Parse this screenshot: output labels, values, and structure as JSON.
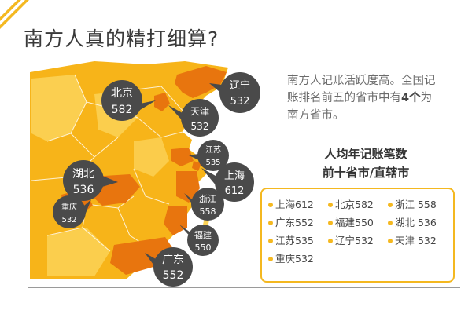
{
  "title": "南方人真的精打细算?",
  "intro": {
    "line1": "南方人记账活跃度高。全国记",
    "line2_pre": "账排名前五的省市中有",
    "line2_bold": "4个",
    "line2_post": "为",
    "line3": "南方省市。"
  },
  "subtitle": {
    "line1": "人均年记账笔数",
    "line2": "前十省市/直辖市"
  },
  "colors": {
    "accent": "#f4b820",
    "highlight": "#e8750e",
    "map_base": "#f7b419",
    "map_light": "#fbd257",
    "bubble": "#4a4a4a"
  },
  "chart_data": {
    "type": "map",
    "title": "人均年记账笔数 前十省市/直辖市",
    "unit": "",
    "regions": [
      {
        "name": "上海",
        "value": 612
      },
      {
        "name": "北京",
        "value": 582
      },
      {
        "name": "浙江",
        "value": 558
      },
      {
        "name": "广东",
        "value": 552
      },
      {
        "name": "福建",
        "value": 550
      },
      {
        "name": "湖北",
        "value": 536
      },
      {
        "name": "江苏",
        "value": 535
      },
      {
        "name": "辽宁",
        "value": 532
      },
      {
        "name": "天津",
        "value": 532
      },
      {
        "name": "重庆",
        "value": 532
      }
    ]
  },
  "ranking": [
    "上海612",
    "北京582",
    "浙江 558",
    "广东552",
    "福建550",
    "湖北 536",
    "江苏535",
    "辽宁532",
    "天津 532",
    "重庆532"
  ]
}
